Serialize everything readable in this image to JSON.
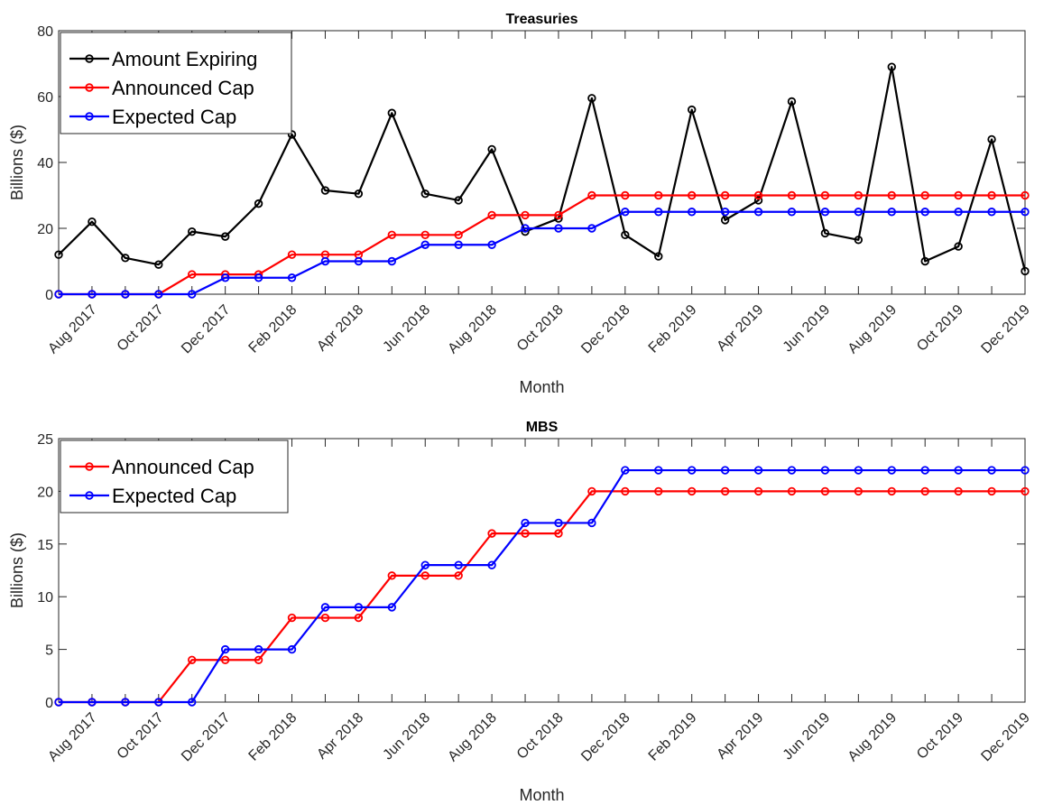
{
  "chart_data": [
    {
      "type": "line",
      "title": "Treasuries",
      "xlabel": "Month",
      "ylabel": "Billions ($)",
      "ylim": [
        0,
        80
      ],
      "yticks": [
        0,
        20,
        40,
        60,
        80
      ],
      "xtick_labels": [
        "Aug 2017",
        "Oct 2017",
        "Dec 2017",
        "Feb 2018",
        "Apr 2018",
        "Jun 2018",
        "Aug 2018",
        "Oct 2018",
        "Dec 2018",
        "Feb 2019",
        "Apr 2019",
        "Jun 2019",
        "Aug 2019",
        "Oct 2019",
        "Dec 2019"
      ],
      "x": [
        "Jul 2017",
        "Aug 2017",
        "Sep 2017",
        "Oct 2017",
        "Nov 2017",
        "Dec 2017",
        "Jan 2018",
        "Feb 2018",
        "Mar 2018",
        "Apr 2018",
        "May 2018",
        "Jun 2018",
        "Jul 2018",
        "Aug 2018",
        "Sep 2018",
        "Oct 2018",
        "Nov 2018",
        "Dec 2018",
        "Jan 2019",
        "Feb 2019",
        "Mar 2019",
        "Apr 2019",
        "May 2019",
        "Jun 2019",
        "Jul 2019",
        "Aug 2019",
        "Sep 2019",
        "Oct 2019",
        "Nov 2019",
        "Dec 2019"
      ],
      "legend_position": "top-left",
      "grid": false,
      "series": [
        {
          "name": "Amount Expiring",
          "color": "#000000",
          "values": [
            12,
            22,
            11,
            9,
            19,
            17.5,
            27.5,
            48.5,
            31.5,
            30.5,
            55,
            30.5,
            28.5,
            44,
            19,
            23,
            59.5,
            18,
            11.5,
            56,
            22.5,
            28.5,
            58.5,
            18.5,
            16.5,
            69,
            10,
            14.5,
            47,
            7
          ]
        },
        {
          "name": "Announced Cap",
          "color": "#ff0000",
          "values": [
            0,
            0,
            0,
            0,
            6,
            6,
            6,
            12,
            12,
            12,
            18,
            18,
            18,
            24,
            24,
            24,
            30,
            30,
            30,
            30,
            30,
            30,
            30,
            30,
            30,
            30,
            30,
            30,
            30,
            30
          ]
        },
        {
          "name": "Expected Cap",
          "color": "#0000ff",
          "values": [
            0,
            0,
            0,
            0,
            0,
            5,
            5,
            5,
            10,
            10,
            10,
            15,
            15,
            15,
            20,
            20,
            20,
            25,
            25,
            25,
            25,
            25,
            25,
            25,
            25,
            25,
            25,
            25,
            25,
            25
          ]
        }
      ]
    },
    {
      "type": "line",
      "title": "MBS",
      "xlabel": "Month",
      "ylabel": "Billions ($)",
      "ylim": [
        0,
        25
      ],
      "yticks": [
        0,
        5,
        10,
        15,
        20,
        25
      ],
      "xtick_labels": [
        "Aug 2017",
        "Oct 2017",
        "Dec 2017",
        "Feb 2018",
        "Apr 2018",
        "Jun 2018",
        "Aug 2018",
        "Oct 2018",
        "Dec 2018",
        "Feb 2019",
        "Apr 2019",
        "Jun 2019",
        "Aug 2019",
        "Oct 2019",
        "Dec 2019"
      ],
      "x": [
        "Jul 2017",
        "Aug 2017",
        "Sep 2017",
        "Oct 2017",
        "Nov 2017",
        "Dec 2017",
        "Jan 2018",
        "Feb 2018",
        "Mar 2018",
        "Apr 2018",
        "May 2018",
        "Jun 2018",
        "Jul 2018",
        "Aug 2018",
        "Sep 2018",
        "Oct 2018",
        "Nov 2018",
        "Dec 2018",
        "Jan 2019",
        "Feb 2019",
        "Mar 2019",
        "Apr 2019",
        "May 2019",
        "Jun 2019",
        "Jul 2019",
        "Aug 2019",
        "Sep 2019",
        "Oct 2019",
        "Nov 2019",
        "Dec 2019"
      ],
      "legend_position": "top-left",
      "grid": false,
      "series": [
        {
          "name": "Announced Cap",
          "color": "#ff0000",
          "values": [
            0,
            0,
            0,
            0,
            4,
            4,
            4,
            8,
            8,
            8,
            12,
            12,
            12,
            16,
            16,
            16,
            20,
            20,
            20,
            20,
            20,
            20,
            20,
            20,
            20,
            20,
            20,
            20,
            20,
            20
          ]
        },
        {
          "name": "Expected Cap",
          "color": "#0000ff",
          "values": [
            0,
            0,
            0,
            0,
            0,
            5,
            5,
            5,
            9,
            9,
            9,
            13,
            13,
            13,
            17,
            17,
            17,
            22,
            22,
            22,
            22,
            22,
            22,
            22,
            22,
            22,
            22,
            22,
            22,
            22
          ]
        }
      ]
    }
  ]
}
